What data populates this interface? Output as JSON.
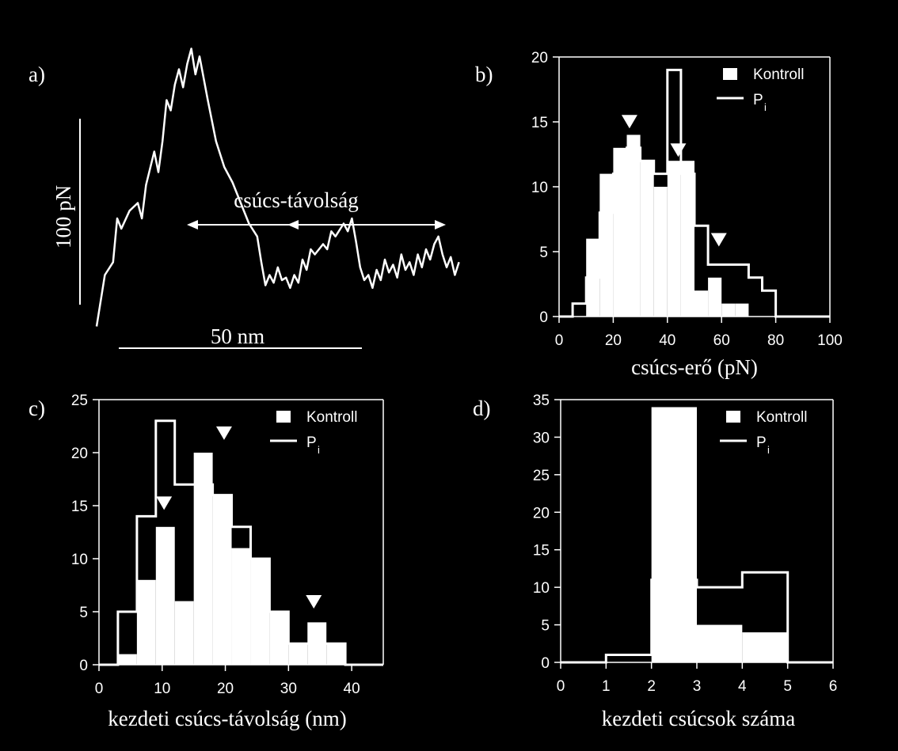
{
  "colors": {
    "background": "#000000",
    "foreground": "#ffffff"
  },
  "panel_a": {
    "label": "a)",
    "y_scale_label": "100 pN",
    "x_scale_label": "50 nm",
    "annotation": "csúcs-távolság",
    "trace": [
      [
        0,
        0.1
      ],
      [
        2,
        0.3
      ],
      [
        4,
        0.35
      ],
      [
        5,
        0.52
      ],
      [
        6,
        0.48
      ],
      [
        8,
        0.55
      ],
      [
        10,
        0.58
      ],
      [
        11,
        0.52
      ],
      [
        12,
        0.65
      ],
      [
        14,
        0.78
      ],
      [
        15,
        0.7
      ],
      [
        16,
        0.82
      ],
      [
        17,
        0.98
      ],
      [
        18,
        0.94
      ],
      [
        19,
        1.04
      ],
      [
        20,
        1.1
      ],
      [
        21,
        1.03
      ],
      [
        22,
        1.12
      ],
      [
        23,
        1.18
      ],
      [
        24,
        1.08
      ],
      [
        25,
        1.15
      ],
      [
        27,
        0.98
      ],
      [
        29,
        0.82
      ],
      [
        31,
        0.72
      ],
      [
        33,
        0.66
      ],
      [
        35,
        0.58
      ],
      [
        37,
        0.5
      ],
      [
        39,
        0.45
      ],
      [
        40,
        0.35
      ],
      [
        41,
        0.26
      ],
      [
        42,
        0.3
      ],
      [
        43,
        0.27
      ],
      [
        44,
        0.33
      ],
      [
        45,
        0.28
      ],
      [
        46,
        0.29
      ],
      [
        47,
        0.25
      ],
      [
        48,
        0.3
      ],
      [
        49,
        0.27
      ],
      [
        50,
        0.36
      ],
      [
        51,
        0.32
      ],
      [
        52,
        0.4
      ],
      [
        53,
        0.38
      ],
      [
        55,
        0.42
      ],
      [
        56,
        0.4
      ],
      [
        57,
        0.47
      ],
      [
        58,
        0.45
      ],
      [
        60,
        0.5
      ],
      [
        61,
        0.47
      ],
      [
        62,
        0.52
      ],
      [
        63,
        0.43
      ],
      [
        64,
        0.33
      ],
      [
        65,
        0.28
      ],
      [
        66,
        0.3
      ],
      [
        67,
        0.25
      ],
      [
        68,
        0.32
      ],
      [
        69,
        0.28
      ],
      [
        70,
        0.36
      ],
      [
        71,
        0.31
      ],
      [
        72,
        0.34
      ],
      [
        73,
        0.29
      ],
      [
        74,
        0.38
      ],
      [
        75,
        0.32
      ],
      [
        76,
        0.35
      ],
      [
        77,
        0.3
      ],
      [
        78,
        0.38
      ],
      [
        79,
        0.33
      ],
      [
        80,
        0.4
      ],
      [
        81,
        0.36
      ],
      [
        82,
        0.42
      ],
      [
        83,
        0.45
      ],
      [
        84,
        0.38
      ],
      [
        85,
        0.33
      ],
      [
        86,
        0.37
      ],
      [
        87,
        0.3
      ],
      [
        88,
        0.35
      ]
    ]
  },
  "chart_data": [
    {
      "panel": "b)",
      "type": "bar",
      "xlabel": "csúcs-erő (pN)",
      "xlim": [
        0,
        100
      ],
      "ylim": [
        0,
        20
      ],
      "xticks": [
        0,
        20,
        40,
        60,
        80,
        100
      ],
      "yticks": [
        0,
        5,
        10,
        15,
        20
      ],
      "legend": [
        "Kontroll",
        "P"
      ],
      "legend_subscript": "i",
      "legend_placement": "top-right",
      "bin_edges": [
        0,
        5,
        10,
        15,
        20,
        25,
        30,
        35,
        40,
        45,
        50,
        55,
        60,
        65,
        70,
        75,
        80,
        85,
        90,
        95,
        100
      ],
      "series": [
        {
          "name": "Kontroll",
          "style": "filled",
          "values": [
            0,
            0,
            6,
            11,
            13,
            14,
            12,
            10,
            12,
            12,
            2,
            3,
            1,
            1,
            0,
            0,
            0,
            0,
            0,
            0
          ]
        },
        {
          "name": "P",
          "style": "outline",
          "values": [
            0,
            1,
            3,
            8,
            11,
            13,
            12,
            11,
            19,
            11,
            7,
            4,
            4,
            4,
            3,
            2,
            0,
            0,
            0,
            0
          ]
        }
      ],
      "markers": [
        [
          26,
          14.5
        ],
        [
          44,
          12.3
        ],
        [
          59,
          5.4
        ]
      ]
    },
    {
      "panel": "c)",
      "type": "bar",
      "xlabel": "kezdeti csúcs-távolság (nm)",
      "xlim": [
        0,
        45
      ],
      "ylim": [
        0,
        25
      ],
      "xticks": [
        0,
        10,
        20,
        30,
        40
      ],
      "yticks": [
        0,
        5,
        10,
        15,
        20,
        25
      ],
      "legend": [
        "Kontroll",
        "P"
      ],
      "legend_subscript": "i",
      "legend_placement": "top-right",
      "bin_edges": [
        0,
        3,
        6,
        9,
        12,
        15,
        18,
        21,
        24,
        27,
        30,
        33,
        36,
        39,
        42,
        45
      ],
      "series": [
        {
          "name": "Kontroll",
          "style": "filled",
          "values": [
            0,
            1,
            8,
            13,
            6,
            20,
            16,
            11,
            10,
            5,
            2,
            4,
            2,
            0,
            0
          ]
        },
        {
          "name": "P",
          "style": "outline",
          "values": [
            0,
            5,
            14,
            23,
            17,
            17,
            16,
            13,
            10,
            5,
            2,
            2,
            2,
            0,
            0
          ]
        }
      ],
      "markers": [
        [
          10.3,
          14.6
        ],
        [
          19.8,
          21.2
        ],
        [
          34,
          5.3
        ]
      ]
    },
    {
      "panel": "d)",
      "type": "bar",
      "xlabel": "kezdeti csúcsok száma",
      "xlim": [
        0,
        6
      ],
      "ylim": [
        0,
        35
      ],
      "xticks": [
        0,
        1,
        2,
        3,
        4,
        5,
        6
      ],
      "yticks": [
        0,
        5,
        10,
        15,
        20,
        25,
        30,
        35
      ],
      "legend": [
        "Kontroll",
        "P"
      ],
      "legend_subscript": "i",
      "legend_placement": "top-right",
      "bin_edges": [
        0,
        1,
        2,
        3,
        4,
        5,
        6
      ],
      "series": [
        {
          "name": "Kontroll",
          "style": "filled",
          "values": [
            0,
            0,
            34,
            5,
            4,
            0
          ]
        },
        {
          "name": "P",
          "style": "outline",
          "values": [
            0,
            1,
            11,
            10,
            12,
            0
          ]
        }
      ],
      "markers": []
    }
  ]
}
